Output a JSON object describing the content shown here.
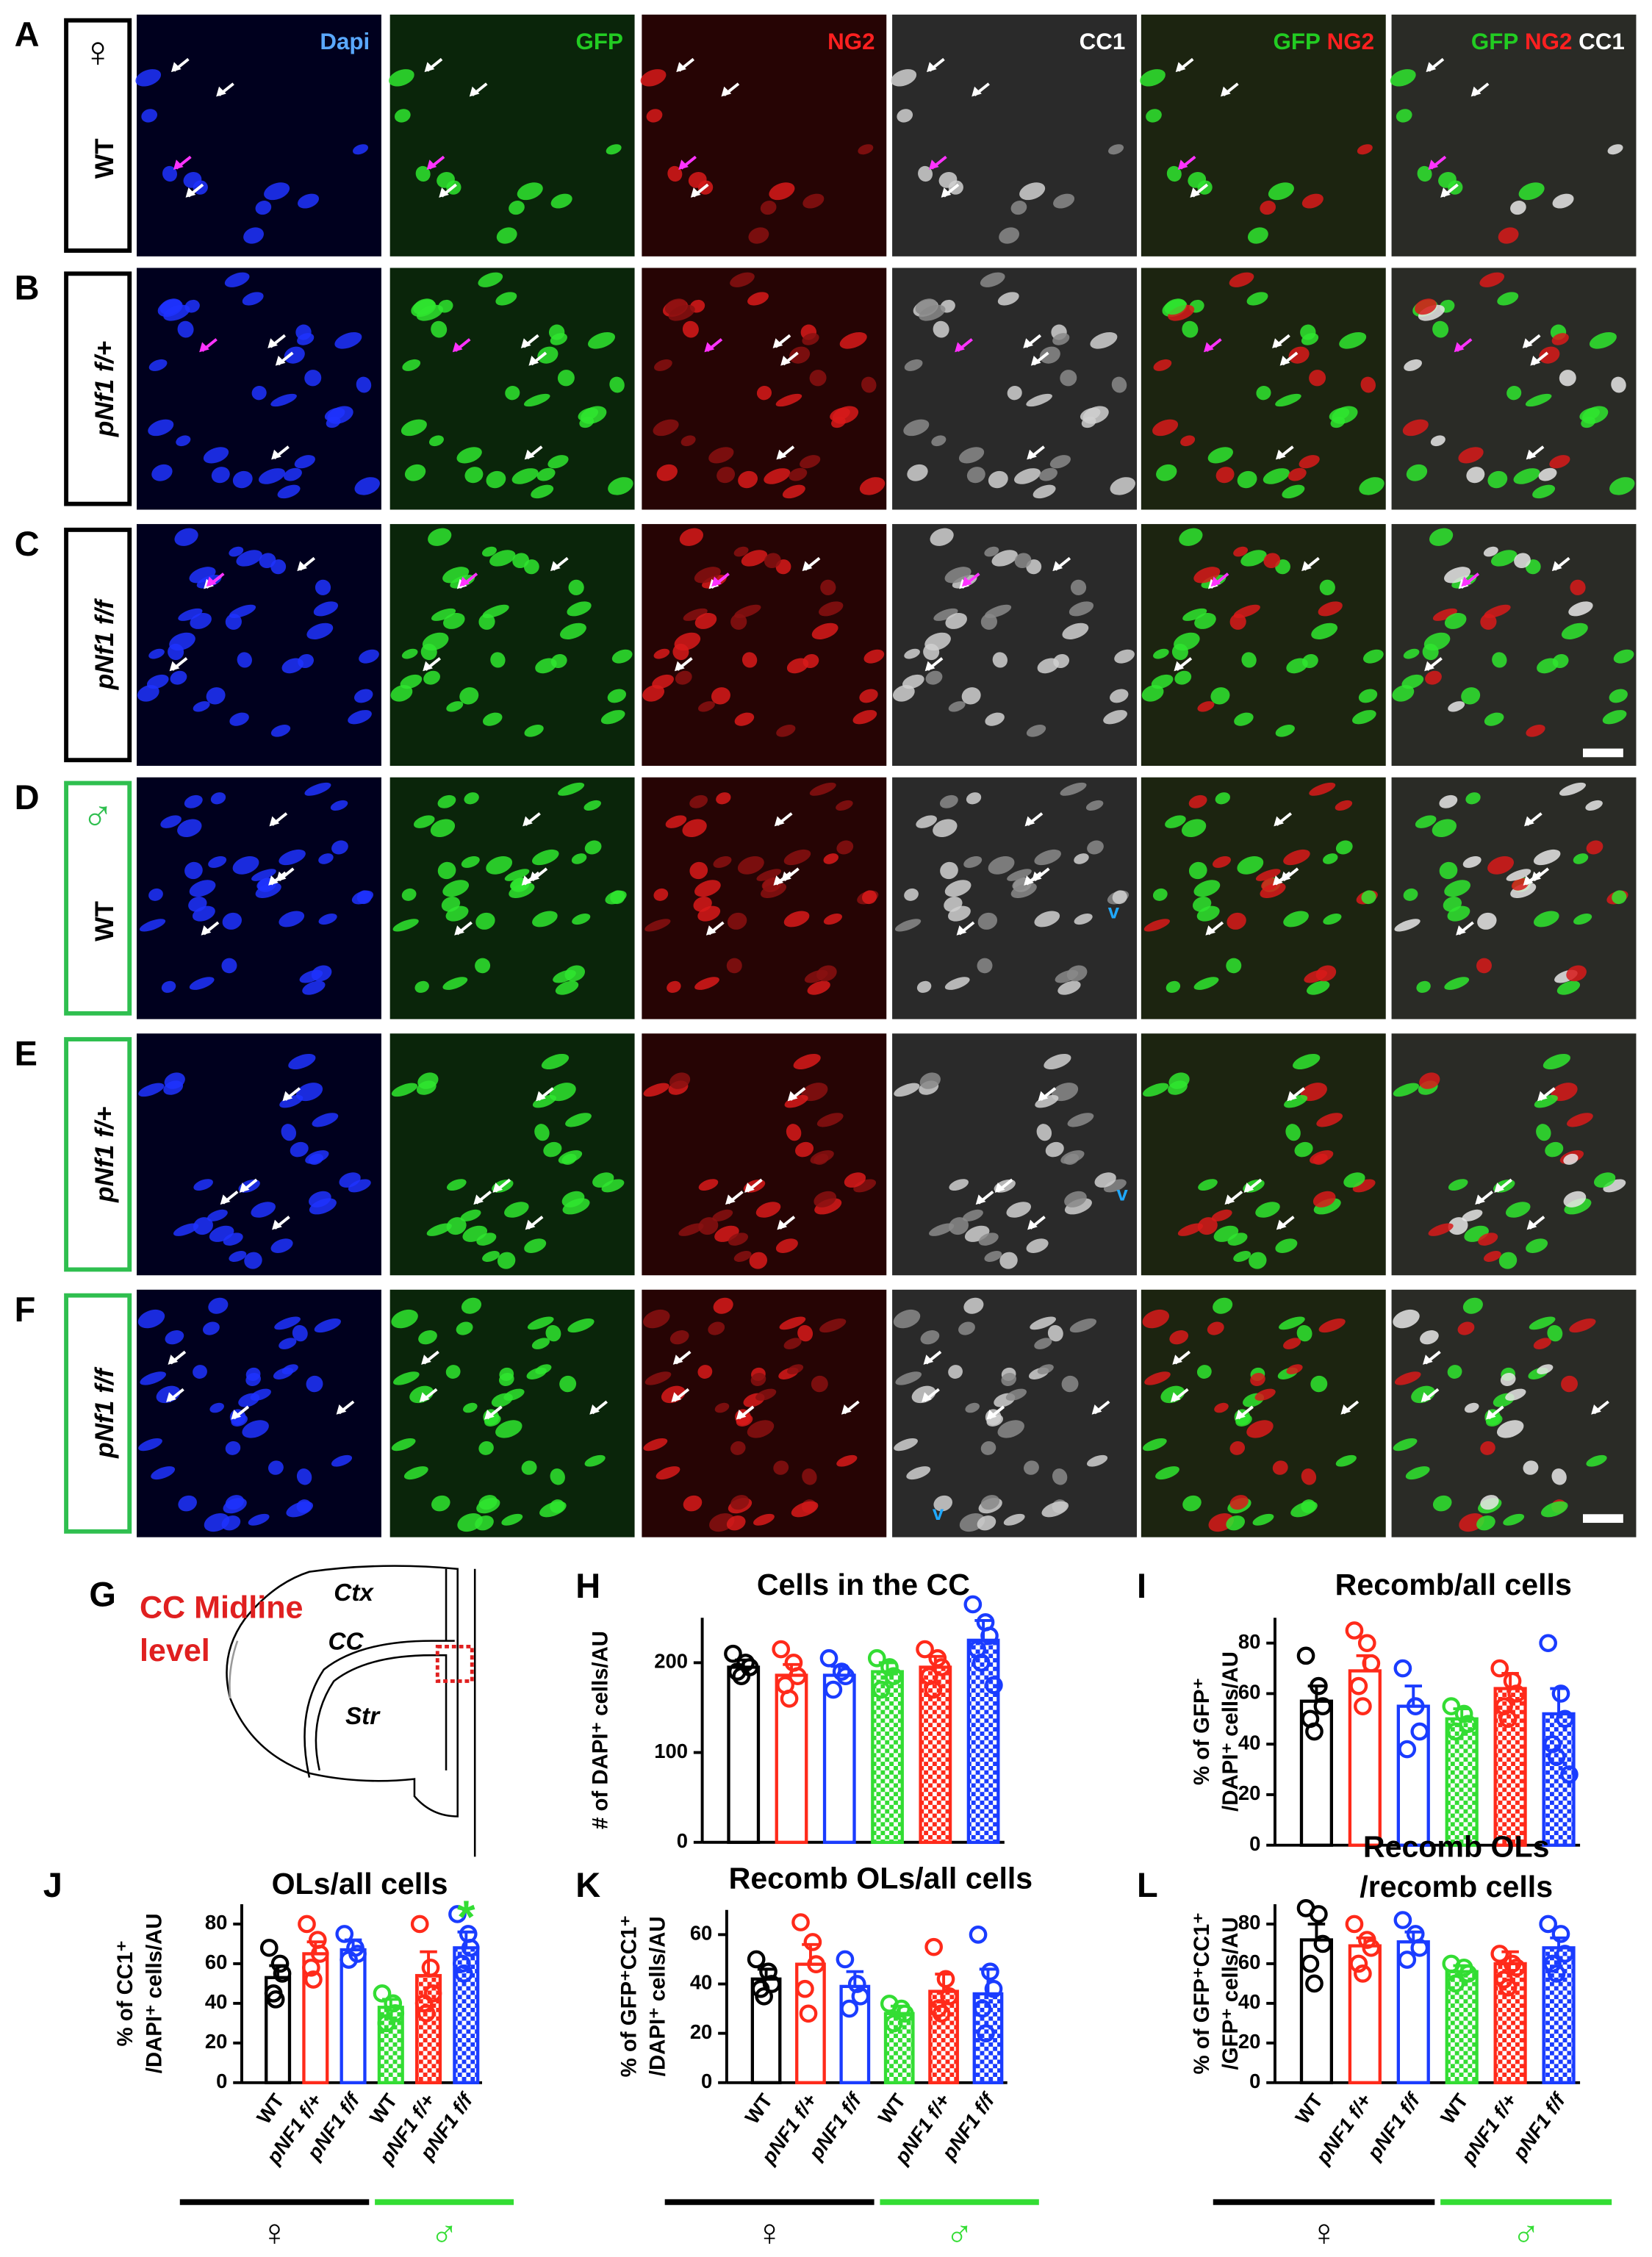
{
  "figure": {
    "rows": [
      {
        "letter": "A",
        "genotype": "WT",
        "sex_symbol": "♀",
        "border_color": "#000000"
      },
      {
        "letter": "B",
        "genotype": "pNf1 f/+",
        "border_color": "#000000"
      },
      {
        "letter": "C",
        "genotype": "pNf1 f/f",
        "border_color": "#000000"
      },
      {
        "letter": "D",
        "genotype": "WT",
        "sex_symbol": "♂",
        "border_color": "#2fbf4f"
      },
      {
        "letter": "E",
        "genotype": "pNf1 f/+",
        "border_color": "#2fbf4f"
      },
      {
        "letter": "F",
        "genotype": "pNf1 f/f",
        "border_color": "#2fbf4f"
      }
    ],
    "columns": [
      [
        {
          "text": "Dapi",
          "color": "#5aa8ff"
        }
      ],
      [
        {
          "text": "GFP",
          "color": "#22cc22"
        }
      ],
      [
        {
          "text": "NG2",
          "color": "#ff2020"
        }
      ],
      [
        {
          "text": "CC1",
          "color": "#ffffff"
        }
      ],
      [
        {
          "text": "GFP",
          "color": "#22cc22"
        },
        {
          "text": "NG2",
          "color": "#ff2020"
        }
      ],
      [
        {
          "text": "GFP",
          "color": "#22cc22"
        },
        {
          "text": "NG2",
          "color": "#ff2020"
        },
        {
          "text": "CC1",
          "color": "#ffffff"
        }
      ]
    ],
    "markers": [
      "v",
      "v",
      "v"
    ],
    "panel_g": {
      "letter": "G",
      "level_label": [
        "CC Midline",
        "level"
      ],
      "regions": [
        "Ctx",
        "CC",
        "Str"
      ]
    }
  },
  "chart_data": [
    {
      "type": "bar",
      "panel": "H",
      "title": [
        "Cells in the CC"
      ],
      "ylabel": [
        "# of DAPI⁺ cells/AU"
      ],
      "ylim": [
        0,
        250
      ],
      "yticks": [
        0,
        100,
        200
      ],
      "values": [
        195,
        186,
        186,
        190,
        195,
        225
      ],
      "errors": [
        8,
        12,
        10,
        10,
        12,
        22
      ],
      "points": [
        [
          210,
          200,
          195,
          190,
          185
        ],
        [
          215,
          200,
          185,
          175,
          160
        ],
        [
          205,
          190,
          185,
          170
        ],
        [
          205,
          195,
          185,
          170
        ],
        [
          215,
          205,
          195,
          185,
          170
        ],
        [
          265,
          245,
          230,
          215,
          200,
          175
        ]
      ],
      "colors": [
        "#000000",
        "#ff2a1a",
        "#1a3cff",
        "#33dd33",
        "#ff2a1a",
        "#1a3cff"
      ],
      "hatched": [
        false,
        false,
        false,
        true,
        true,
        true
      ]
    },
    {
      "type": "bar",
      "panel": "I",
      "title": [
        "Recomb/all cells"
      ],
      "ylabel": [
        "% of GFP⁺",
        "/DAPI⁺ cells/AU"
      ],
      "ylim": [
        0,
        90
      ],
      "yticks": [
        0,
        20,
        40,
        60,
        80
      ],
      "values": [
        57,
        69,
        55,
        50,
        62,
        52
      ],
      "errors": [
        6,
        6,
        8,
        4,
        6,
        10
      ],
      "points": [
        [
          75,
          63,
          55,
          50,
          45
        ],
        [
          85,
          80,
          72,
          63,
          55
        ],
        [
          70,
          55,
          45,
          38
        ],
        [
          55,
          52,
          48,
          45
        ],
        [
          70,
          65,
          60,
          55,
          50
        ],
        [
          80,
          60,
          50,
          40,
          35,
          28
        ]
      ],
      "colors": [
        "#000000",
        "#ff2a1a",
        "#1a3cff",
        "#33dd33",
        "#ff2a1a",
        "#1a3cff"
      ],
      "hatched": [
        false,
        false,
        false,
        true,
        true,
        true
      ]
    },
    {
      "type": "bar",
      "panel": "J",
      "title": [
        "OLs/all cells"
      ],
      "ylabel": [
        "% of CC1⁺",
        "/DAPI⁺ cells/AU"
      ],
      "ylim": [
        0,
        90
      ],
      "yticks": [
        0,
        20,
        40,
        60,
        80
      ],
      "values": [
        53,
        65,
        67,
        38,
        54,
        68
      ],
      "errors": [
        6,
        6,
        5,
        4,
        12,
        8
      ],
      "points": [
        [
          68,
          60,
          55,
          45,
          42
        ],
        [
          80,
          72,
          65,
          58,
          52
        ],
        [
          75,
          68,
          65,
          62
        ],
        [
          45,
          40,
          35,
          30
        ],
        [
          80,
          58,
          45,
          40,
          35
        ],
        [
          85,
          75,
          68,
          60,
          55
        ]
      ],
      "colors": [
        "#000000",
        "#ff2a1a",
        "#1a3cff",
        "#33dd33",
        "#ff2a1a",
        "#1a3cff"
      ],
      "hatched": [
        false,
        false,
        false,
        true,
        true,
        true
      ],
      "categories": [
        "WT",
        "pNF1 f/+",
        "pNF1 f/f",
        "WT",
        "pNF1 f/+",
        "pNF1 f/f"
      ],
      "groups": [
        {
          "label": "♀",
          "color": "#000000"
        },
        {
          "label": "♂",
          "color": "#33dd33"
        }
      ],
      "annotations": [
        {
          "bar": 5,
          "text": "*",
          "color": "#33dd33"
        }
      ]
    },
    {
      "type": "bar",
      "panel": "K",
      "title": [
        "Recomb OLs/all cells"
      ],
      "ylabel": [
        "% of GFP⁺CC1⁺",
        "/DAPI⁺ cells/AU"
      ],
      "ylim": [
        0,
        70
      ],
      "yticks": [
        0,
        20,
        40,
        60
      ],
      "values": [
        42,
        48,
        39,
        28,
        37,
        36
      ],
      "errors": [
        4,
        8,
        6,
        3,
        7,
        10
      ],
      "points": [
        [
          50,
          45,
          40,
          38,
          35
        ],
        [
          65,
          57,
          48,
          38,
          28
        ],
        [
          50,
          40,
          35,
          30
        ],
        [
          32,
          30,
          28,
          24
        ],
        [
          55,
          42,
          35,
          30,
          28
        ],
        [
          60,
          45,
          38,
          30,
          20
        ]
      ],
      "colors": [
        "#000000",
        "#ff2a1a",
        "#1a3cff",
        "#33dd33",
        "#ff2a1a",
        "#1a3cff"
      ],
      "hatched": [
        false,
        false,
        false,
        true,
        true,
        true
      ],
      "categories": [
        "WT",
        "pNF1 f/+",
        "pNF1 f/f",
        "WT",
        "pNF1 f/+",
        "pNF1 f/f"
      ],
      "groups": [
        {
          "label": "♀",
          "color": "#000000"
        },
        {
          "label": "♂",
          "color": "#33dd33"
        }
      ]
    },
    {
      "type": "bar",
      "panel": "L",
      "title": [
        "Recomb OLs",
        "/recomb cells"
      ],
      "ylabel": [
        "% of GFP⁺CC1⁺",
        "/GFP⁺ cells/AU"
      ],
      "ylim": [
        0,
        90
      ],
      "yticks": [
        0,
        20,
        40,
        60,
        80
      ],
      "values": [
        72,
        69,
        71,
        56,
        60,
        68
      ],
      "errors": [
        8,
        4,
        5,
        3,
        6,
        5
      ],
      "points": [
        [
          88,
          85,
          70,
          60,
          50
        ],
        [
          80,
          72,
          68,
          60,
          55
        ],
        [
          82,
          75,
          68,
          62
        ],
        [
          60,
          58,
          55,
          50
        ],
        [
          65,
          60,
          58,
          52,
          48
        ],
        [
          80,
          75,
          65,
          60,
          55
        ]
      ],
      "colors": [
        "#000000",
        "#ff2a1a",
        "#1a3cff",
        "#33dd33",
        "#ff2a1a",
        "#1a3cff"
      ],
      "hatched": [
        false,
        false,
        false,
        true,
        true,
        true
      ],
      "categories": [
        "WT",
        "pNF1 f/+",
        "pNF1 f/f",
        "WT",
        "pNF1 f/+",
        "pNF1 f/f"
      ],
      "groups": [
        {
          "label": "♀",
          "color": "#000000"
        },
        {
          "label": "♂",
          "color": "#33dd33"
        }
      ]
    }
  ]
}
